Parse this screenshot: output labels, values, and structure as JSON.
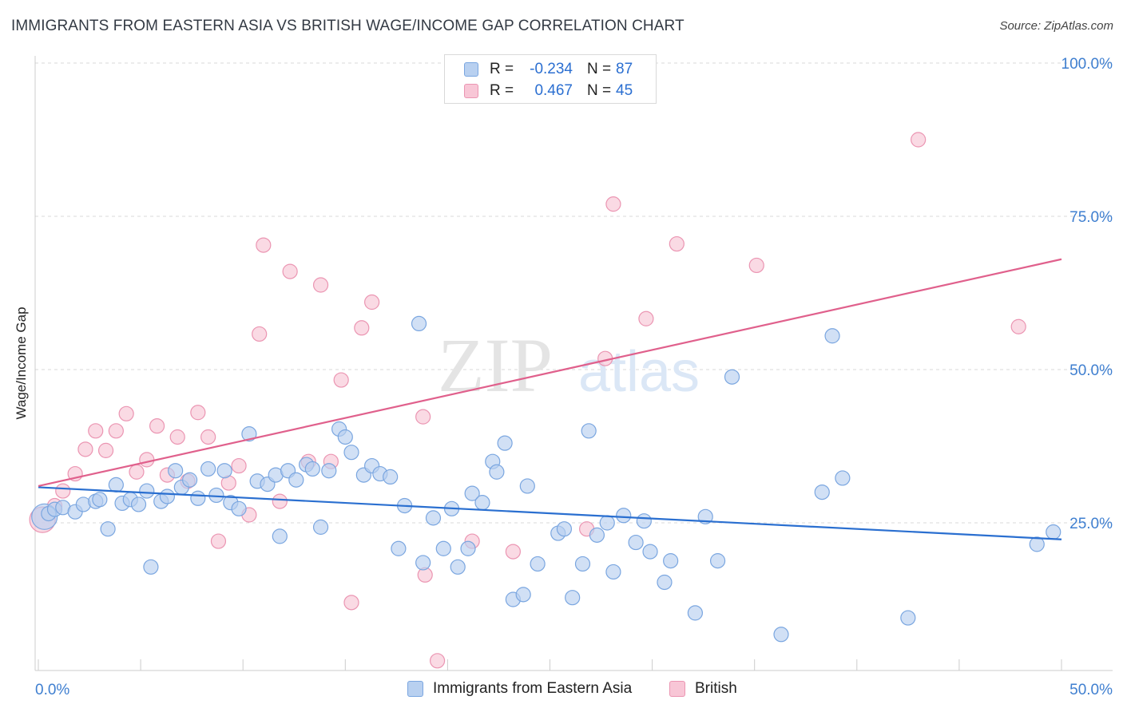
{
  "title": "IMMIGRANTS FROM EASTERN ASIA VS BRITISH WAGE/INCOME GAP CORRELATION CHART",
  "source": "Source: ZipAtlas.com",
  "watermark": {
    "zip": "ZIP",
    "atlas": "atlas"
  },
  "colors": {
    "blue_fill": "#b8d0f0",
    "blue_stroke": "#7aa6e0",
    "blue_line": "#2a6fd0",
    "pink_fill": "#f8c6d6",
    "pink_stroke": "#eb95b2",
    "pink_line": "#e0608c",
    "axis_text": "#3f7fd0",
    "grid": "#d9d9d9"
  },
  "legend_top": [
    {
      "r_label": "R =",
      "r_value": "-0.234",
      "n_label": "N =",
      "n_value": "87",
      "series": "blue"
    },
    {
      "r_label": "R =",
      "r_value": "0.467",
      "n_label": "N =",
      "n_value": "45",
      "series": "pink"
    }
  ],
  "legend_bottom": [
    {
      "label": "Immigrants from Eastern Asia",
      "series": "blue"
    },
    {
      "label": "British",
      "series": "pink"
    }
  ],
  "chart_data": {
    "type": "scatter",
    "title": "IMMIGRANTS FROM EASTERN ASIA VS BRITISH WAGE/INCOME GAP CORRELATION CHART",
    "xlabel": "",
    "ylabel": "Wage/Income Gap",
    "xlim": [
      0,
      50
    ],
    "ylim": [
      0,
      105
    ],
    "x_tick_labels": [
      {
        "value": 0,
        "label": "0.0%"
      },
      {
        "value": 50,
        "label": "50.0%"
      }
    ],
    "y_tick_labels": [
      {
        "value": 25,
        "label": "25.0%"
      },
      {
        "value": 50,
        "label": "50.0%"
      },
      {
        "value": 75,
        "label": "75.0%"
      },
      {
        "value": 100,
        "label": "100.0%"
      }
    ],
    "series": [
      {
        "name": "Immigrants from Eastern Asia",
        "color": "blue",
        "trend": {
          "x0": 0,
          "y0": 30.8,
          "x1": 50,
          "y1": 22.3
        },
        "points": [
          [
            0.3,
            26.0
          ],
          [
            0.5,
            26.5
          ],
          [
            0.8,
            27.2
          ],
          [
            1.2,
            27.5
          ],
          [
            1.8,
            26.8
          ],
          [
            2.2,
            28.0
          ],
          [
            2.8,
            28.5
          ],
          [
            3.0,
            28.8
          ],
          [
            3.4,
            24.0
          ],
          [
            3.8,
            31.2
          ],
          [
            4.1,
            28.2
          ],
          [
            4.5,
            28.8
          ],
          [
            4.9,
            28.0
          ],
          [
            5.3,
            30.2
          ],
          [
            5.5,
            17.8
          ],
          [
            6.0,
            28.5
          ],
          [
            6.3,
            29.3
          ],
          [
            6.7,
            33.5
          ],
          [
            7.0,
            30.8
          ],
          [
            7.4,
            32.0
          ],
          [
            7.8,
            29.0
          ],
          [
            8.3,
            33.8
          ],
          [
            8.7,
            29.5
          ],
          [
            9.1,
            33.5
          ],
          [
            9.4,
            28.3
          ],
          [
            9.8,
            27.3
          ],
          [
            10.3,
            39.5
          ],
          [
            10.7,
            31.8
          ],
          [
            11.2,
            31.3
          ],
          [
            11.6,
            32.8
          ],
          [
            11.8,
            22.8
          ],
          [
            12.2,
            33.5
          ],
          [
            12.6,
            32.0
          ],
          [
            13.1,
            34.5
          ],
          [
            13.4,
            33.8
          ],
          [
            13.8,
            24.3
          ],
          [
            14.2,
            33.5
          ],
          [
            14.7,
            40.3
          ],
          [
            15.0,
            39.0
          ],
          [
            15.3,
            36.5
          ],
          [
            15.9,
            32.8
          ],
          [
            16.3,
            34.3
          ],
          [
            16.7,
            33.0
          ],
          [
            17.2,
            32.5
          ],
          [
            17.6,
            20.8
          ],
          [
            17.9,
            27.8
          ],
          [
            18.6,
            57.5
          ],
          [
            18.8,
            18.5
          ],
          [
            19.3,
            25.8
          ],
          [
            19.8,
            20.8
          ],
          [
            20.2,
            27.3
          ],
          [
            20.5,
            17.8
          ],
          [
            21.0,
            20.8
          ],
          [
            21.2,
            29.8
          ],
          [
            21.7,
            28.3
          ],
          [
            22.2,
            35.0
          ],
          [
            22.4,
            33.3
          ],
          [
            22.8,
            38.0
          ],
          [
            23.2,
            12.5
          ],
          [
            23.7,
            13.3
          ],
          [
            23.9,
            31.0
          ],
          [
            24.4,
            18.3
          ],
          [
            25.4,
            23.3
          ],
          [
            25.7,
            24.0
          ],
          [
            26.1,
            12.8
          ],
          [
            26.6,
            18.3
          ],
          [
            26.9,
            40.0
          ],
          [
            27.3,
            23.0
          ],
          [
            27.8,
            25.0
          ],
          [
            28.1,
            17.0
          ],
          [
            28.6,
            26.2
          ],
          [
            29.2,
            21.8
          ],
          [
            29.6,
            25.3
          ],
          [
            29.9,
            20.3
          ],
          [
            30.6,
            15.3
          ],
          [
            30.9,
            18.8
          ],
          [
            32.1,
            10.3
          ],
          [
            32.6,
            26.0
          ],
          [
            33.2,
            18.8
          ],
          [
            33.9,
            48.8
          ],
          [
            36.3,
            6.8
          ],
          [
            38.3,
            30.0
          ],
          [
            38.8,
            55.5
          ],
          [
            39.3,
            32.3
          ],
          [
            42.5,
            9.5
          ],
          [
            48.8,
            21.5
          ],
          [
            49.6,
            23.5
          ]
        ]
      },
      {
        "name": "British",
        "color": "pink",
        "trend": {
          "x0": 0,
          "y0": 31.0,
          "x1": 50,
          "y1": 68.0
        },
        "points": [
          [
            0.2,
            25.5
          ],
          [
            0.8,
            27.8
          ],
          [
            1.2,
            30.2
          ],
          [
            1.8,
            33.0
          ],
          [
            2.3,
            37.0
          ],
          [
            2.8,
            40.0
          ],
          [
            3.3,
            36.8
          ],
          [
            3.8,
            40.0
          ],
          [
            4.3,
            42.8
          ],
          [
            4.8,
            33.3
          ],
          [
            5.3,
            35.3
          ],
          [
            5.8,
            40.8
          ],
          [
            6.3,
            32.8
          ],
          [
            6.8,
            39.0
          ],
          [
            7.3,
            31.8
          ],
          [
            7.8,
            43.0
          ],
          [
            8.3,
            39.0
          ],
          [
            8.8,
            22.0
          ],
          [
            9.3,
            31.5
          ],
          [
            9.8,
            34.3
          ],
          [
            10.3,
            26.3
          ],
          [
            10.8,
            55.8
          ],
          [
            11.0,
            70.3
          ],
          [
            11.8,
            28.5
          ],
          [
            12.3,
            66.0
          ],
          [
            13.2,
            35.0
          ],
          [
            13.8,
            63.8
          ],
          [
            14.3,
            35.0
          ],
          [
            14.8,
            48.3
          ],
          [
            15.3,
            12.0
          ],
          [
            15.8,
            56.8
          ],
          [
            16.3,
            61.0
          ],
          [
            18.8,
            42.3
          ],
          [
            18.9,
            16.5
          ],
          [
            19.5,
            2.5
          ],
          [
            21.2,
            22.0
          ],
          [
            23.2,
            20.3
          ],
          [
            26.8,
            24.0
          ],
          [
            27.7,
            51.8
          ],
          [
            28.1,
            77.0
          ],
          [
            29.7,
            58.3
          ],
          [
            31.2,
            70.5
          ],
          [
            35.1,
            67.0
          ],
          [
            43.0,
            87.5
          ],
          [
            47.9,
            57.0
          ]
        ]
      }
    ]
  }
}
